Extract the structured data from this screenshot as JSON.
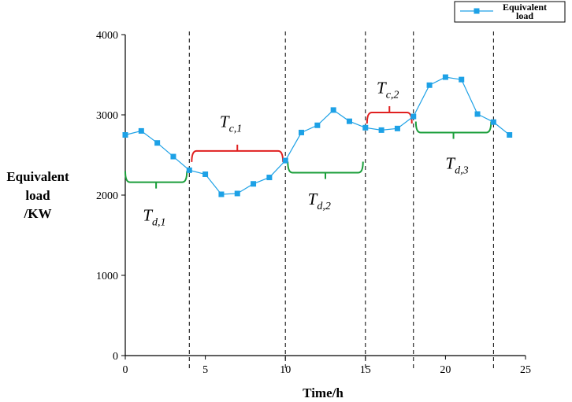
{
  "chart_data": {
    "type": "line",
    "xlabel": "Time/h",
    "ylabel_lines": [
      "Equivalent",
      "load",
      "/KW"
    ],
    "xlim": [
      0,
      25
    ],
    "ylim": [
      0,
      4000
    ],
    "xticks": [
      0,
      5,
      10,
      15,
      20,
      25
    ],
    "yticks": [
      0,
      1000,
      2000,
      3000,
      4000
    ],
    "grid": false,
    "legend_position": "top-right",
    "series": [
      {
        "name": "Equivalent load",
        "color": "#1da1e6",
        "marker": "square",
        "x": [
          0,
          1,
          2,
          3,
          4,
          5,
          6,
          7,
          8,
          9,
          10,
          11,
          12,
          13,
          14,
          15,
          16,
          17,
          18,
          19,
          20,
          21,
          22,
          23,
          24
        ],
        "y": [
          2750,
          2800,
          2650,
          2480,
          2310,
          2260,
          2010,
          2020,
          2140,
          2220,
          2430,
          2780,
          2870,
          3060,
          2920,
          2840,
          2810,
          2830,
          2980,
          3370,
          3470,
          3440,
          3010,
          2910,
          2750
        ]
      }
    ],
    "vlines": [
      4,
      10,
      15,
      18,
      23
    ],
    "annotations": [
      {
        "main": "T",
        "sub": "d,1",
        "color": "#1a9e3a",
        "x_start": 0,
        "x_end": 3.85,
        "level": 2160,
        "direction": "down",
        "label_x": 1.1,
        "label_y": 1680
      },
      {
        "main": "T",
        "sub": "c,1",
        "color": "#e02020",
        "x_start": 4.15,
        "x_end": 9.85,
        "level": 2550,
        "direction": "up",
        "label_x": 5.9,
        "label_y": 2850
      },
      {
        "main": "T",
        "sub": "d,2",
        "color": "#1a9e3a",
        "x_start": 10.15,
        "x_end": 14.85,
        "level": 2280,
        "direction": "down",
        "label_x": 11.4,
        "label_y": 1880
      },
      {
        "main": "T",
        "sub": "c,2",
        "color": "#e02020",
        "x_start": 15.1,
        "x_end": 17.9,
        "level": 3030,
        "direction": "up",
        "label_x": 15.7,
        "label_y": 3270
      },
      {
        "main": "T",
        "sub": "d,3",
        "color": "#1a9e3a",
        "x_start": 18.15,
        "x_end": 22.85,
        "level": 2780,
        "direction": "down",
        "label_x": 20.0,
        "label_y": 2330
      }
    ],
    "legend": {
      "lines": [
        "Equivalent",
        "load"
      ]
    }
  }
}
